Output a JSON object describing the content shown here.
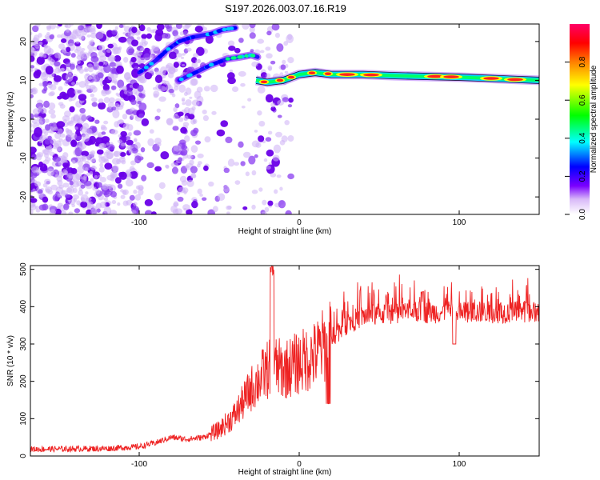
{
  "title": "S197.2026.003.07.16.R19",
  "charts": [
    {
      "type": "heatmap",
      "xlabel": "Height of straight line (km)",
      "ylabel": "Frequency (Hz)",
      "xlim": [
        -168,
        150
      ],
      "ylim": [
        -24.5,
        24.5
      ],
      "x_ticks": [
        -100,
        0,
        100
      ],
      "y_ticks": [
        -20,
        -10,
        0,
        10,
        20
      ],
      "ridge_segments": [
        {
          "name": "upper-left branch",
          "points": [
            [
              -100,
              12
            ],
            [
              -90,
              15
            ],
            [
              -82,
              18
            ],
            [
              -75,
              20
            ],
            [
              -68,
              21
            ],
            [
              -55,
              22
            ],
            [
              -48,
              23
            ],
            [
              -40,
              23.5
            ]
          ]
        },
        {
          "name": "middle branch",
          "points": [
            [
              -75,
              10
            ],
            [
              -65,
              12
            ],
            [
              -55,
              14
            ],
            [
              -45,
              15.5
            ],
            [
              -37,
              16
            ],
            [
              -30,
              16.5
            ],
            [
              -26,
              16
            ]
          ]
        },
        {
          "name": "main line",
          "points": [
            [
              -27,
              10
            ],
            [
              -20,
              9.5
            ],
            [
              -10,
              10
            ],
            [
              0,
              11.5
            ],
            [
              10,
              12
            ],
            [
              20,
              11.5
            ],
            [
              40,
              11.5
            ],
            [
              60,
              11.2
            ],
            [
              80,
              11
            ],
            [
              100,
              10.8
            ],
            [
              120,
              10.5
            ],
            [
              150,
              10
            ]
          ]
        }
      ]
    },
    {
      "type": "line",
      "xlabel": "Height of straight line (km)",
      "ylabel": "SNR (10 * v/v)",
      "xlim": [
        -168,
        150
      ],
      "ylim": [
        0,
        510
      ],
      "x_ticks": [
        -100,
        0,
        100
      ],
      "y_ticks": [
        0,
        100,
        200,
        300,
        400,
        500
      ],
      "series": [
        {
          "name": "SNR",
          "color": "#ee2222",
          "envelope": {
            "x": [
              -168,
              -120,
              -100,
              -90,
              -80,
              -70,
              -60,
              -50,
              -40,
              -30,
              -20,
              -17,
              -15,
              -10,
              0,
              10,
              20,
              30,
              40,
              60,
              80,
              100,
              120,
              150
            ],
            "y": [
              18,
              20,
              25,
              35,
              50,
              45,
              50,
              70,
              110,
              180,
              230,
              250,
              240,
              230,
              250,
              270,
              320,
              355,
              375,
              385,
              385,
              385,
              385,
              385
            ]
          }
        }
      ]
    }
  ],
  "colorbar": {
    "label": "Normalized spectral amplitude",
    "range": [
      0,
      1
    ],
    "ticks": [
      0.0,
      0.2,
      0.4,
      0.6,
      0.8
    ],
    "tick_labels": [
      "0.0",
      "0.2",
      "0.4",
      "0.6",
      "0.8"
    ],
    "colors": [
      "#ffffff",
      "#d8b8f8",
      "#7a00ff",
      "#0000ff",
      "#00ffff",
      "#00ff00",
      "#ffff00",
      "#ff8000",
      "#ff0000",
      "#ff0066"
    ]
  }
}
